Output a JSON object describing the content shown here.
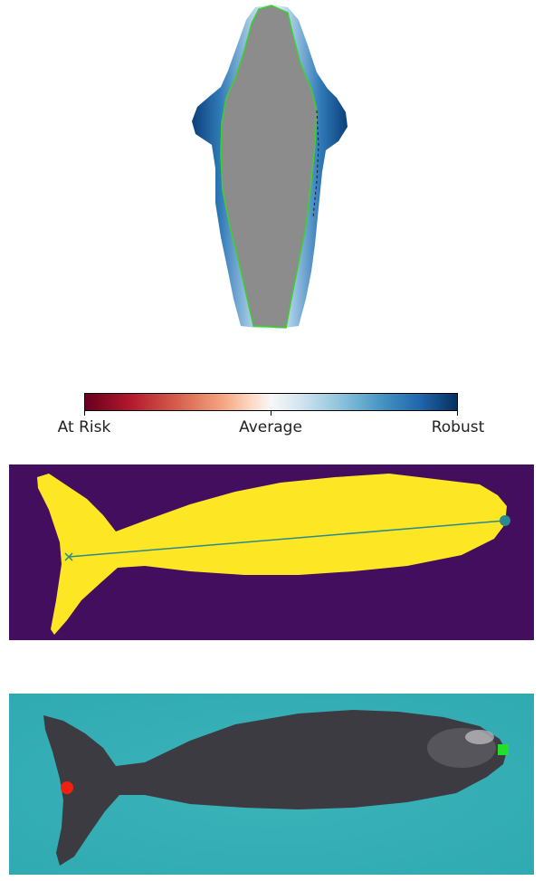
{
  "colorbar": {
    "labels": {
      "left": "At Risk",
      "center": "Average",
      "right": "Robust"
    }
  },
  "colors": {
    "body_fill": "#8c8c8c",
    "contour": "#3cd22a",
    "mask_background": "#440e5f",
    "mask_whale": "#fde725",
    "length_line": "#2a8a8e",
    "water": "#3bb6bb",
    "whale_skin": "#3c3b42",
    "tail_marker": "#f02010",
    "head_marker": "#22e02a"
  },
  "markers": [
    {
      "name": "tail-marker",
      "shape": "circle",
      "color": "red"
    },
    {
      "name": "head-marker",
      "shape": "square",
      "color": "green"
    }
  ]
}
